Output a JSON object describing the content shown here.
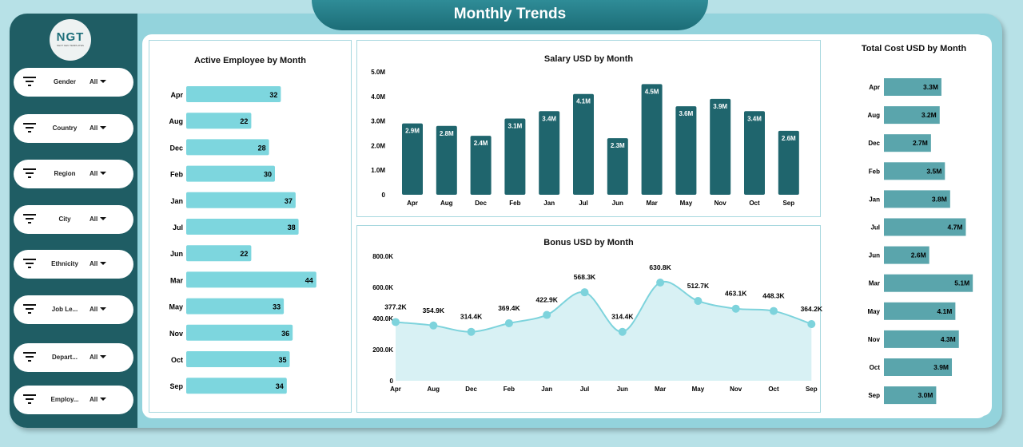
{
  "header": {
    "title": "Monthly Trends"
  },
  "logo": {
    "text": "NGT",
    "tagline": "NEXT GEN TEMPLATES"
  },
  "filters": [
    {
      "label": "Gender",
      "value": "All"
    },
    {
      "label": "Country",
      "value": "All"
    },
    {
      "label": "Region",
      "value": "All"
    },
    {
      "label": "City",
      "value": "All"
    },
    {
      "label": "Ethnicity",
      "value": "All"
    },
    {
      "label": "Job Le...",
      "value": "All"
    },
    {
      "label": "Depart...",
      "value": "All"
    },
    {
      "label": "Employ...",
      "value": "All"
    }
  ],
  "colors": {
    "sidebar": "#1f5d64",
    "active_bar": "#7dd6de",
    "salary_bar": "#1f656d",
    "cost_bar": "#5aa5ac",
    "area": "#d8f1f4",
    "line": "#7dd3dc"
  },
  "chart_data": [
    {
      "type": "bar",
      "orientation": "horizontal",
      "title": "Active Employee by Month",
      "categories": [
        "Apr",
        "Aug",
        "Dec",
        "Feb",
        "Jan",
        "Jul",
        "Jun",
        "Mar",
        "May",
        "Nov",
        "Oct",
        "Sep"
      ],
      "values": [
        32,
        22,
        28,
        30,
        37,
        38,
        22,
        44,
        33,
        36,
        35,
        34
      ],
      "data_labels": [
        "32",
        "22",
        "28",
        "30",
        "37",
        "38",
        "22",
        "44",
        "33",
        "36",
        "35",
        "34"
      ]
    },
    {
      "type": "bar",
      "title": "Salary USD by Month",
      "categories": [
        "Apr",
        "Aug",
        "Dec",
        "Feb",
        "Jan",
        "Jul",
        "Jun",
        "Mar",
        "May",
        "Nov",
        "Oct",
        "Sep"
      ],
      "values": [
        2.9,
        2.8,
        2.4,
        3.1,
        3.4,
        4.1,
        2.3,
        4.5,
        3.6,
        3.9,
        3.4,
        2.6
      ],
      "data_labels": [
        "2.9M",
        "2.8M",
        "2.4M",
        "3.1M",
        "3.4M",
        "4.1M",
        "2.3M",
        "4.5M",
        "3.6M",
        "3.9M",
        "3.4M",
        "2.6M"
      ],
      "unit": "M",
      "ylim": [
        0,
        5
      ],
      "yticks": [
        "0",
        "1.0M",
        "2.0M",
        "3.0M",
        "4.0M",
        "5.0M"
      ]
    },
    {
      "type": "area",
      "title": "Bonus USD by Month",
      "categories": [
        "Apr",
        "Aug",
        "Dec",
        "Feb",
        "Jan",
        "Jul",
        "Jun",
        "Mar",
        "May",
        "Nov",
        "Oct",
        "Sep"
      ],
      "values": [
        377.2,
        354.9,
        314.4,
        369.4,
        422.9,
        568.3,
        314.4,
        630.8,
        512.7,
        463.1,
        448.3,
        364.2
      ],
      "data_labels": [
        "377.2K",
        "354.9K",
        "314.4K",
        "369.4K",
        "422.9K",
        "568.3K",
        "314.4K",
        "630.8K",
        "512.7K",
        "463.1K",
        "448.3K",
        "364.2K"
      ],
      "unit": "K",
      "ylim": [
        0,
        800
      ],
      "yticks": [
        "0",
        "200.0K",
        "400.0K",
        "600.0K",
        "800.0K"
      ]
    },
    {
      "type": "bar",
      "orientation": "horizontal",
      "title": "Total Cost USD by Month",
      "categories": [
        "Apr",
        "Aug",
        "Dec",
        "Feb",
        "Jan",
        "Jul",
        "Jun",
        "Mar",
        "May",
        "Nov",
        "Oct",
        "Sep"
      ],
      "values": [
        3.3,
        3.2,
        2.7,
        3.5,
        3.8,
        4.7,
        2.6,
        5.1,
        4.1,
        4.3,
        3.9,
        3.0
      ],
      "data_labels": [
        "3.3M",
        "3.2M",
        "2.7M",
        "3.5M",
        "3.8M",
        "4.7M",
        "2.6M",
        "5.1M",
        "4.1M",
        "4.3M",
        "3.9M",
        "3.0M"
      ],
      "unit": "M"
    }
  ]
}
